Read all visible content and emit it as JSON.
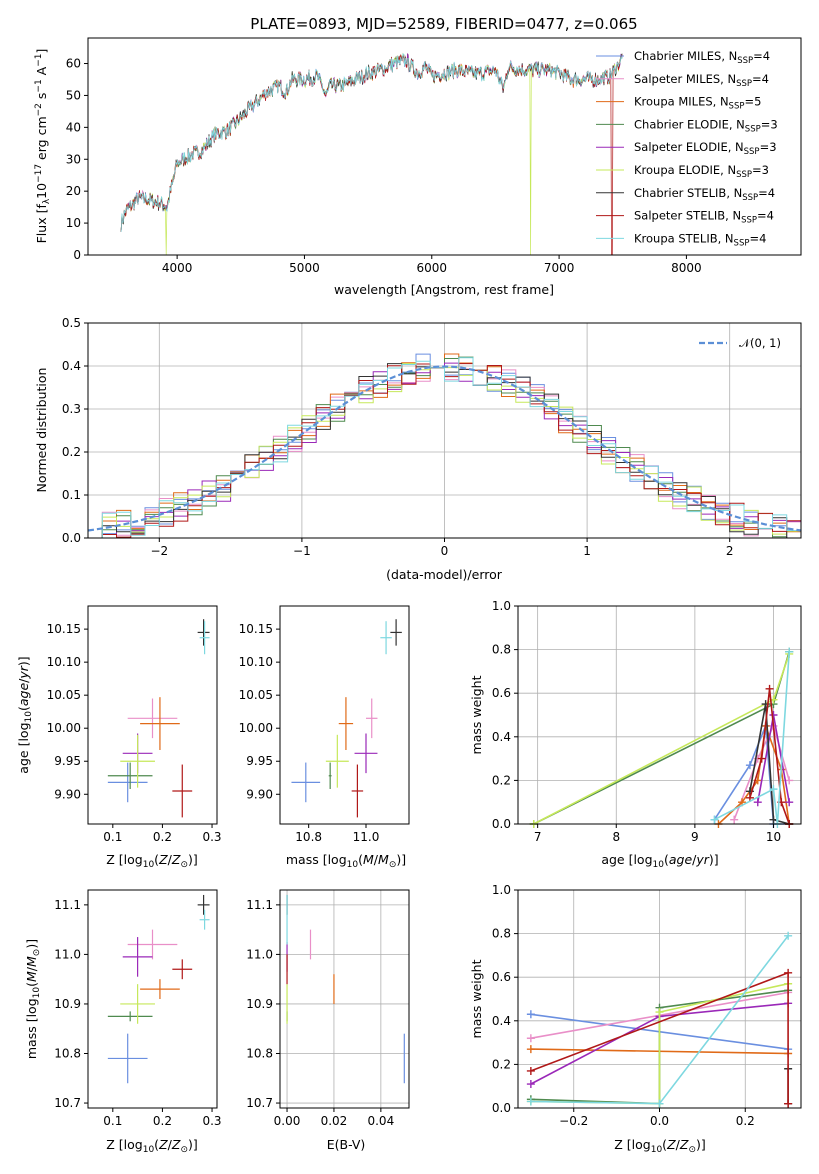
{
  "colors": {
    "chabrier_miles": "#6a8fe0",
    "salpeter_miles": "#e98fc8",
    "kroupa_miles": "#e06a18",
    "chabrier_elodie": "#4f8a4f",
    "salpeter_elodie": "#9a28b8",
    "kroupa_elodie": "#c6e85a",
    "chabrier_stelib": "#333333",
    "salpeter_stelib": "#b01818",
    "kroupa_stelib": "#7ed8e0",
    "grid": "#b0b0b0",
    "gauss": "#5b8fd6"
  },
  "chart_data": [
    {
      "id": "spectrum",
      "type": "line",
      "title": "PLATE=0893, MJD=52589, FIBERID=0477, z=0.065",
      "xlabel": "wavelength [Angstrom, rest frame]",
      "ylabel": "Flux [fλ10⁻¹⁷ erg cm⁻² s⁻¹ A⁻¹]",
      "xlim": [
        3300,
        8900
      ],
      "ylim": [
        0,
        68
      ],
      "xticks": [
        4000,
        5000,
        6000,
        7000,
        8000
      ],
      "yticks": [
        0,
        10,
        20,
        30,
        40,
        50,
        60
      ],
      "grid": false,
      "legend_position": "top-right",
      "legend": [
        {
          "label": "Chabrier MILES, N",
          "sub": "SSP",
          "suffix": "=4",
          "color_key": "chabrier_miles"
        },
        {
          "label": "Salpeter MILES, N",
          "sub": "SSP",
          "suffix": "=4",
          "color_key": "salpeter_miles"
        },
        {
          "label": "Kroupa MILES, N",
          "sub": "SSP",
          "suffix": "=5",
          "color_key": "kroupa_miles"
        },
        {
          "label": "Chabrier ELODIE, N",
          "sub": "SSP",
          "suffix": "=3",
          "color_key": "chabrier_elodie"
        },
        {
          "label": "Salpeter ELODIE, N",
          "sub": "SSP",
          "suffix": "=3",
          "color_key": "salpeter_elodie"
        },
        {
          "label": "Kroupa ELODIE, N",
          "sub": "SSP",
          "suffix": "=3",
          "color_key": "kroupa_elodie"
        },
        {
          "label": "Chabrier STELIB, N",
          "sub": "SSP",
          "suffix": "=4",
          "color_key": "chabrier_stelib"
        },
        {
          "label": "Salpeter STELIB, N",
          "sub": "SSP",
          "suffix": "=4",
          "color_key": "salpeter_stelib"
        },
        {
          "label": "Kroupa STELIB, N",
          "sub": "SSP",
          "suffix": "=4",
          "color_key": "kroupa_stelib"
        }
      ],
      "continuum": {
        "x": [
          3560,
          3600,
          3700,
          3800,
          3880,
          3920,
          4000,
          4100,
          4200,
          4300,
          4400,
          4500,
          4600,
          4700,
          4800,
          4860,
          4900,
          5000,
          5100,
          5170,
          5200,
          5300,
          5400,
          5500,
          5600,
          5700,
          5800,
          5890,
          5950,
          6000,
          6100,
          6200,
          6300,
          6400,
          6500,
          6563,
          6600,
          6700,
          6800,
          6900,
          7000,
          7100,
          7200,
          7300,
          7400,
          7500
        ],
        "y": [
          10,
          14,
          18,
          17,
          16,
          15,
          29,
          31,
          33,
          38,
          39,
          43,
          47,
          51,
          53,
          51,
          55,
          55,
          56,
          50,
          53,
          53,
          55,
          57,
          58,
          60,
          61,
          57,
          59,
          56,
          57,
          58,
          57,
          57,
          58,
          52,
          59,
          58,
          58,
          58,
          57,
          55,
          55,
          55,
          56,
          62
        ]
      },
      "dropouts": [
        {
          "x": 3915,
          "color_key": "kroupa_elodie"
        },
        {
          "x": 6775,
          "color_key": "kroupa_elodie"
        },
        {
          "x": 7415,
          "color_key": "salpeter_stelib"
        }
      ]
    },
    {
      "id": "residuals",
      "type": "histogram",
      "xlabel": "(data-model)/error",
      "ylabel": "Normed distribution",
      "xlim": [
        -2.5,
        2.5
      ],
      "ylim": [
        0,
        0.5
      ],
      "xticks": [
        -2,
        -1,
        0,
        1,
        2
      ],
      "yticks": [
        0.0,
        0.1,
        0.2,
        0.3,
        0.4,
        0.5
      ],
      "grid": true,
      "legend_position": "top-right",
      "gauss_label": "𝒩(0, 1)"
    },
    {
      "id": "age_vs_Z",
      "type": "errorbar",
      "xlabel": "Z [log₁₀(Z/Z⊙)]",
      "ylabel": "age  [log₁₀(age/yr)]",
      "xlim": [
        0.05,
        0.31
      ],
      "ylim": [
        9.855,
        10.185
      ],
      "xticks": [
        0.1,
        0.2,
        0.3
      ],
      "yticks": [
        9.9,
        9.95,
        10.0,
        10.05,
        10.1,
        10.15
      ],
      "points": [
        {
          "k": "chabrier_miles",
          "x": 0.13,
          "y": 9.918,
          "xe": 0.04,
          "ye": 0.03
        },
        {
          "k": "salpeter_miles",
          "x": 0.18,
          "y": 10.015,
          "xe": 0.05,
          "ye": 0.03
        },
        {
          "k": "kroupa_miles",
          "x": 0.195,
          "y": 10.007,
          "xe": 0.04,
          "ye": 0.04
        },
        {
          "k": "chabrier_elodie",
          "x": 0.135,
          "y": 9.928,
          "xe": 0.045,
          "ye": 0.02
        },
        {
          "k": "salpeter_elodie",
          "x": 0.15,
          "y": 9.962,
          "xe": 0.03,
          "ye": 0.03
        },
        {
          "k": "kroupa_elodie",
          "x": 0.15,
          "y": 9.95,
          "xe": 0.035,
          "ye": 0.04
        },
        {
          "k": "chabrier_stelib",
          "x": 0.283,
          "y": 10.145,
          "xe": 0.012,
          "ye": 0.02
        },
        {
          "k": "salpeter_stelib",
          "x": 0.24,
          "y": 9.905,
          "xe": 0.02,
          "ye": 0.04
        },
        {
          "k": "kroupa_stelib",
          "x": 0.285,
          "y": 10.137,
          "xe": 0.01,
          "ye": 0.025
        }
      ]
    },
    {
      "id": "age_vs_mass",
      "type": "errorbar",
      "xlabel": "mass [log₁₀(M/M⊙)]",
      "xlim": [
        10.7,
        11.15
      ],
      "ylim": [
        9.855,
        10.185
      ],
      "xticks": [
        10.8,
        11.0
      ],
      "yticks": [
        9.9,
        9.95,
        10.0,
        10.05,
        10.1,
        10.15
      ],
      "points": [
        {
          "k": "chabrier_miles",
          "x": 10.79,
          "y": 9.918,
          "xe": 0.05,
          "ye": 0.03
        },
        {
          "k": "salpeter_miles",
          "x": 11.02,
          "y": 10.015,
          "xe": 0.02,
          "ye": 0.03
        },
        {
          "k": "kroupa_miles",
          "x": 10.93,
          "y": 10.007,
          "xe": 0.025,
          "ye": 0.04
        },
        {
          "k": "chabrier_elodie",
          "x": 10.875,
          "y": 9.928,
          "xe": 0.005,
          "ye": 0.02
        },
        {
          "k": "salpeter_elodie",
          "x": 11.0,
          "y": 9.962,
          "xe": 0.04,
          "ye": 0.03
        },
        {
          "k": "kroupa_elodie",
          "x": 10.9,
          "y": 9.95,
          "xe": 0.04,
          "ye": 0.04
        },
        {
          "k": "chabrier_stelib",
          "x": 11.105,
          "y": 10.145,
          "xe": 0.02,
          "ye": 0.02
        },
        {
          "k": "salpeter_stelib",
          "x": 10.97,
          "y": 9.905,
          "xe": 0.02,
          "ye": 0.04
        },
        {
          "k": "kroupa_stelib",
          "x": 11.07,
          "y": 10.137,
          "xe": 0.02,
          "ye": 0.025
        }
      ]
    },
    {
      "id": "weight_vs_age",
      "type": "line",
      "xlabel": "age  [log₁₀(age/yr)]",
      "ylabel": "mass weight",
      "xlim": [
        6.75,
        10.35
      ],
      "ylim": [
        0,
        1
      ],
      "xticks": [
        7,
        8,
        9,
        10
      ],
      "yticks": [
        0.0,
        0.2,
        0.4,
        0.6,
        0.8,
        1.0
      ],
      "grid": true,
      "series": [
        {
          "k": "chabrier_miles",
          "x": [
            9.25,
            9.7,
            9.9,
            10.0,
            10.2
          ],
          "y": [
            0.02,
            0.27,
            0.45,
            0.0,
            0.0
          ]
        },
        {
          "k": "salpeter_miles",
          "x": [
            9.5,
            9.8,
            10.0,
            10.2
          ],
          "y": [
            0.02,
            0.3,
            0.45,
            0.2
          ]
        },
        {
          "k": "kroupa_miles",
          "x": [
            9.3,
            9.6,
            9.8,
            9.9,
            10.1,
            10.2
          ],
          "y": [
            0.0,
            0.1,
            0.2,
            0.45,
            0.25,
            0.0
          ]
        },
        {
          "k": "chabrier_elodie",
          "x": [
            6.95,
            10.0,
            10.2
          ],
          "y": [
            0.0,
            0.55,
            0.79
          ]
        },
        {
          "k": "salpeter_elodie",
          "x": [
            9.8,
            10.0,
            10.2
          ],
          "y": [
            0.1,
            0.5,
            0.1
          ]
        },
        {
          "k": "kroupa_elodie",
          "x": [
            6.95,
            10.0,
            10.2
          ],
          "y": [
            0.0,
            0.57,
            0.78
          ]
        },
        {
          "k": "chabrier_stelib",
          "x": [
            9.7,
            9.9,
            10.0,
            10.2
          ],
          "y": [
            0.15,
            0.55,
            0.02,
            0.0
          ]
        },
        {
          "k": "salpeter_stelib",
          "x": [
            9.7,
            9.85,
            9.95,
            10.1,
            10.2
          ],
          "y": [
            0.12,
            0.3,
            0.62,
            0.1,
            0.0
          ]
        },
        {
          "k": "kroupa_stelib",
          "x": [
            9.25,
            10.0,
            10.05,
            10.2
          ],
          "y": [
            0.02,
            0.16,
            0.0,
            0.79
          ]
        }
      ]
    },
    {
      "id": "mass_vs_Z",
      "type": "errorbar",
      "xlabel": "Z [log₁₀(Z/Z⊙)]",
      "ylabel": "mass [log₁₀(M/M⊙)]",
      "xlim": [
        0.05,
        0.31
      ],
      "ylim": [
        10.69,
        11.13
      ],
      "xticks": [
        0.1,
        0.2,
        0.3
      ],
      "yticks": [
        10.7,
        10.8,
        10.9,
        11.0,
        11.1
      ],
      "points": [
        {
          "k": "chabrier_miles",
          "x": 0.13,
          "y": 10.79,
          "xe": 0.04,
          "ye": 0.05
        },
        {
          "k": "salpeter_miles",
          "x": 0.18,
          "y": 11.02,
          "xe": 0.05,
          "ye": 0.03
        },
        {
          "k": "kroupa_miles",
          "x": 0.195,
          "y": 10.93,
          "xe": 0.04,
          "ye": 0.02
        },
        {
          "k": "chabrier_elodie",
          "x": 0.135,
          "y": 10.875,
          "xe": 0.045,
          "ye": 0.01
        },
        {
          "k": "salpeter_elodie",
          "x": 0.15,
          "y": 10.995,
          "xe": 0.03,
          "ye": 0.04
        },
        {
          "k": "kroupa_elodie",
          "x": 0.15,
          "y": 10.9,
          "xe": 0.035,
          "ye": 0.04
        },
        {
          "k": "chabrier_stelib",
          "x": 0.283,
          "y": 11.1,
          "xe": 0.012,
          "ye": 0.02
        },
        {
          "k": "salpeter_stelib",
          "x": 0.24,
          "y": 10.97,
          "xe": 0.02,
          "ye": 0.02
        },
        {
          "k": "kroupa_stelib",
          "x": 0.285,
          "y": 11.07,
          "xe": 0.01,
          "ye": 0.02
        }
      ]
    },
    {
      "id": "mass_vs_ebv",
      "type": "errorbar",
      "xlabel": "E(B-V)",
      "xlim": [
        -0.003,
        0.052
      ],
      "ylim": [
        10.69,
        11.13
      ],
      "xticks": [
        0.0,
        0.02,
        0.04
      ],
      "yticks": [
        10.7,
        10.8,
        10.9,
        11.0,
        11.1
      ],
      "points": [
        {
          "k": "chabrier_miles",
          "x": 0.05,
          "y": 10.79,
          "xe": 0.0,
          "ye": 0.05
        },
        {
          "k": "salpeter_miles",
          "x": 0.01,
          "y": 11.02,
          "xe": 0.0,
          "ye": 0.03
        },
        {
          "k": "kroupa_miles",
          "x": 0.02,
          "y": 10.93,
          "xe": 0.0,
          "ye": 0.03
        },
        {
          "k": "chabrier_elodie",
          "x": 0.0,
          "y": 10.875,
          "xe": 0.0,
          "ye": 0.01
        },
        {
          "k": "salpeter_elodie",
          "x": 0.0,
          "y": 10.995,
          "xe": 0.0,
          "ye": 0.03
        },
        {
          "k": "kroupa_elodie",
          "x": 0.0,
          "y": 10.9,
          "xe": 0.0,
          "ye": 0.04
        },
        {
          "k": "chabrier_stelib",
          "x": 0.0,
          "y": 11.1,
          "xe": 0.0,
          "ye": 0.02
        },
        {
          "k": "salpeter_stelib",
          "x": 0.0,
          "y": 10.97,
          "xe": 0.0,
          "ye": 0.03
        },
        {
          "k": "kroupa_stelib",
          "x": 0.0,
          "y": 11.07,
          "xe": 0.0,
          "ye": 0.05
        }
      ]
    },
    {
      "id": "weight_vs_Z",
      "type": "line",
      "xlabel": "Z [log₁₀(Z/Z⊙)]",
      "ylabel": "mass weight",
      "xlim": [
        -0.33,
        0.33
      ],
      "ylim": [
        0,
        1
      ],
      "xticks": [
        -0.2,
        0.0,
        0.2
      ],
      "yticks": [
        0.0,
        0.2,
        0.4,
        0.6,
        0.8,
        1.0
      ],
      "grid": true,
      "series": [
        {
          "k": "chabrier_miles",
          "x": [
            -0.3,
            0.3
          ],
          "y": [
            0.43,
            0.27
          ]
        },
        {
          "k": "salpeter_miles",
          "x": [
            -0.3,
            0.3
          ],
          "y": [
            0.32,
            0.53
          ]
        },
        {
          "k": "kroupa_miles",
          "x": [
            -0.3,
            0.3
          ],
          "y": [
            0.27,
            0.25
          ]
        },
        {
          "k": "chabrier_elodie",
          "x": [
            -0.3,
            0.0,
            0.0,
            0.3
          ],
          "y": [
            0.04,
            0.02,
            0.46,
            0.54
          ]
        },
        {
          "k": "salpeter_elodie",
          "x": [
            -0.3,
            0.0,
            0.3
          ],
          "y": [
            0.11,
            0.42,
            0.48
          ]
        },
        {
          "k": "kroupa_elodie",
          "x": [
            -0.3,
            0.0,
            0.0,
            0.3
          ],
          "y": [
            0.03,
            0.02,
            0.44,
            0.57
          ]
        },
        {
          "k": "chabrier_stelib",
          "x": [
            0.3,
            0.3
          ],
          "y": [
            0.18,
            0.02
          ]
        },
        {
          "k": "salpeter_stelib",
          "x": [
            -0.3,
            0.3,
            0.3
          ],
          "y": [
            0.17,
            0.62,
            0.02
          ]
        },
        {
          "k": "kroupa_stelib",
          "x": [
            -0.3,
            0.0,
            0.3
          ],
          "y": [
            0.03,
            0.02,
            0.79
          ]
        }
      ]
    }
  ]
}
